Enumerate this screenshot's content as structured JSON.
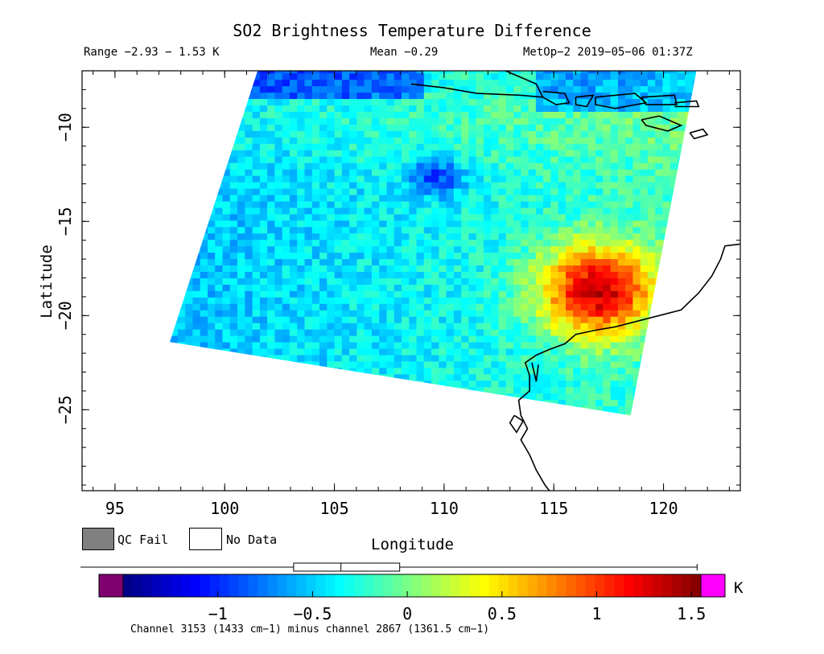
{
  "header": {
    "title": "SO2 Brightness Temperature Difference",
    "range": "Range −2.93 − 1.53 K",
    "mean": "Mean −0.29",
    "satellite": "MetOp−2 2019−05−06 01:37Z"
  },
  "axes": {
    "xlabel": "Longitude",
    "ylabel": "Latitude",
    "x_ticks": [
      "95",
      "100",
      "105",
      "110",
      "115",
      "120"
    ],
    "y_ticks": [
      "−10",
      "−15",
      "−20",
      "−25"
    ],
    "xlim": [
      93.5,
      123.5
    ],
    "ylim": [
      -29.3,
      -7
    ]
  },
  "legend": {
    "qc_fail": "QC Fail",
    "no_data": "No Data",
    "qc_color": "#808080",
    "nodata_color": "#ffffff"
  },
  "colorbar": {
    "unit": "K",
    "ticks": [
      "−1",
      "−0.5",
      "0",
      "0.5",
      "1",
      "1.5"
    ],
    "tick_values": [
      -1,
      -0.5,
      0,
      0.5,
      1,
      1.5
    ],
    "range": [
      -1.5,
      1.55
    ],
    "underflow_color": "#800070",
    "overflow_color": "#ff00ff",
    "footnote": "Channel 3153 (1433 cm−1) minus channel 2867 (1361.5 cm−1)",
    "boxplot": {
      "whisker_low": -2.93,
      "q1": -0.6,
      "median": -0.35,
      "q3": -0.04,
      "whisker_high": 1.53
    }
  },
  "map_data": {
    "swath_corners": [
      [
        101.5,
        -7
      ],
      [
        121.5,
        -7
      ],
      [
        118.5,
        -25.3
      ],
      [
        97.5,
        -21.4
      ]
    ],
    "so2_plume": {
      "lon": 116.8,
      "lat": -18.5,
      "peak_K": 1.3
    },
    "negative_feature": {
      "lon": 109.5,
      "lat": -12.5,
      "min_K": -1.2
    }
  }
}
